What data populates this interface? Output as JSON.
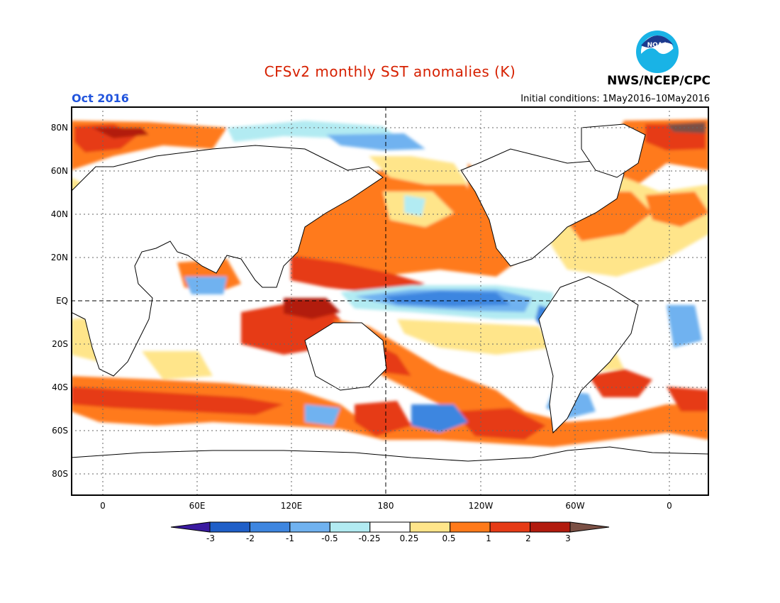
{
  "title": "CFSv2 monthly SST anomalies (K)",
  "organization": "NWS/NCEP/CPC",
  "logo_text": "NOAA",
  "forecast_month": "Oct 2016",
  "initial_conditions": "Initial conditions: 1May2016–10May2016",
  "colors": {
    "title": "#d62000",
    "month": "#2255dd",
    "frame": "#000000"
  },
  "lat_labels": [
    "80N",
    "60N",
    "40N",
    "20N",
    "EQ",
    "20S",
    "40S",
    "60S",
    "80S"
  ],
  "lon_labels": [
    "0",
    "60E",
    "120E",
    "180",
    "120W",
    "60W",
    "0"
  ],
  "colorbar": {
    "labels": [
      "-3",
      "-2",
      "-1",
      "-0.5",
      "-0.25",
      "0.25",
      "0.5",
      "1",
      "2",
      "3"
    ],
    "colors": [
      "#3a1aa0",
      "#1f5fc8",
      "#3e86e0",
      "#70b2f0",
      "#b2ebf2",
      "#ffffff",
      "#ffe58a",
      "#ff7a1a",
      "#e63b16",
      "#b21b0e",
      "#7b5045"
    ]
  }
}
